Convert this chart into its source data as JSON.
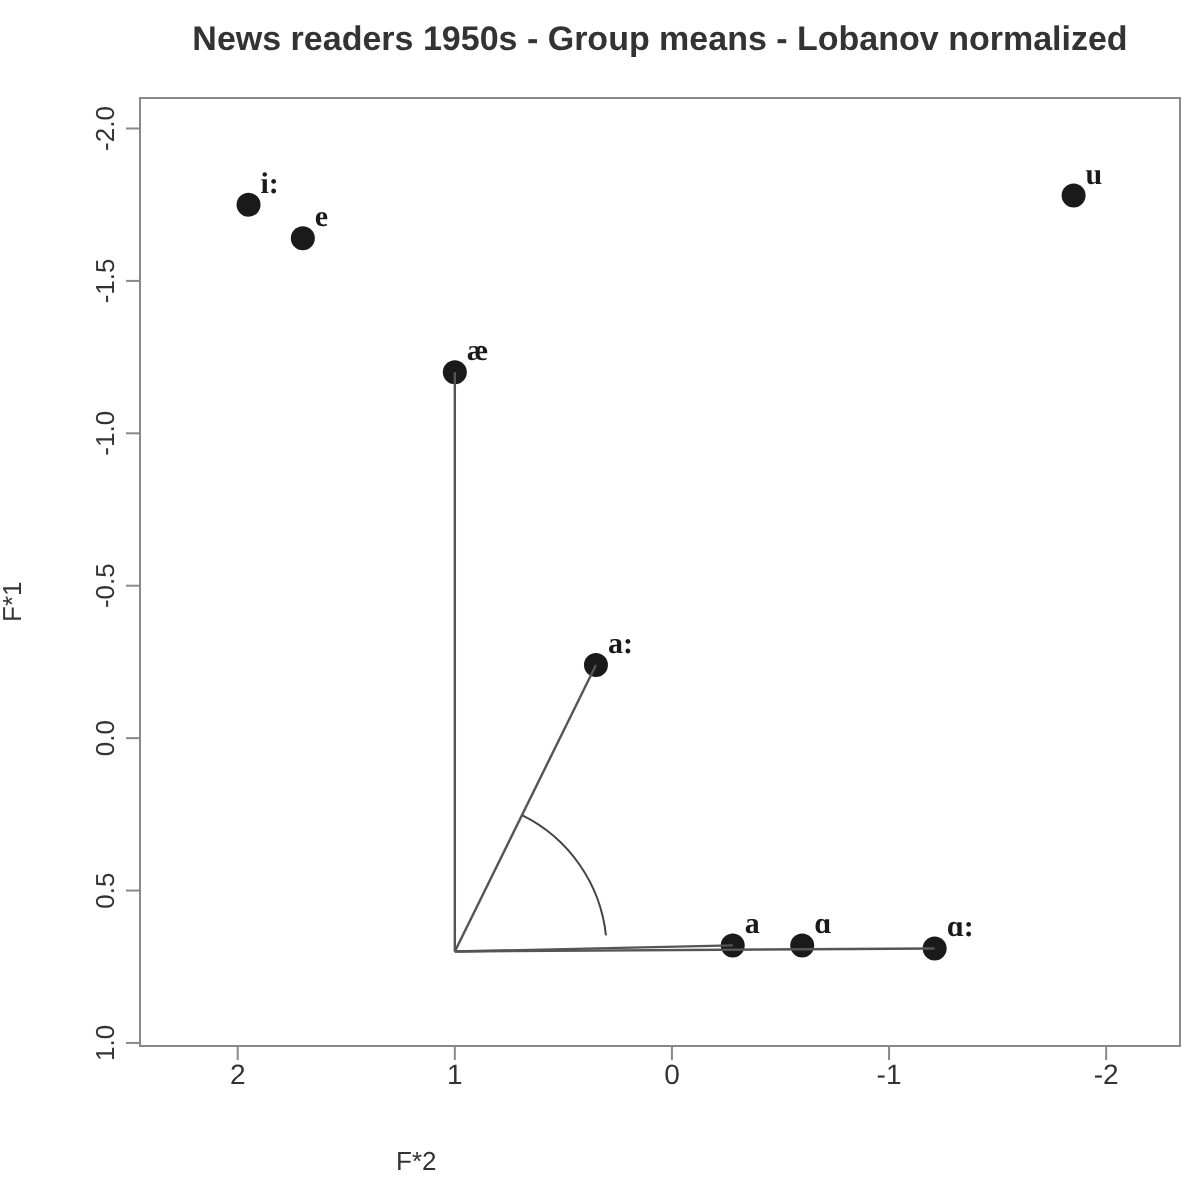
{
  "chart_data": {
    "type": "scatter",
    "title": "News readers 1950s - Group means - Lobanov normalized",
    "xlabel": "F*2",
    "ylabel": "F*1",
    "xlim": [
      2.45,
      -2.34
    ],
    "xticks": [
      2,
      1,
      0,
      -1,
      -2
    ],
    "ylim": [
      1.01,
      -2.1
    ],
    "yticks": [
      {
        "value": -2,
        "label": "-2.0"
      },
      {
        "value": -1.5,
        "label": "-1.5"
      },
      {
        "value": -1,
        "label": "-1.0"
      },
      {
        "value": -0.5,
        "label": "-0.5"
      },
      {
        "value": 0,
        "label": "0.0"
      },
      {
        "value": 0.5,
        "label": "0.5"
      },
      {
        "value": 1,
        "label": "1.0"
      }
    ],
    "grid": false,
    "legend": false,
    "marker": "circle",
    "series": [
      {
        "name": "i:",
        "color": "#1a1a1a",
        "x": [
          1.95
        ],
        "values": [
          -1.75
        ]
      },
      {
        "name": "e",
        "color": "#1a1a1a",
        "x": [
          1.7
        ],
        "values": [
          -1.64
        ]
      },
      {
        "name": "æ",
        "color": "#1a1a1a",
        "x": [
          1.0
        ],
        "values": [
          -1.2
        ]
      },
      {
        "name": "a:",
        "color": "#1a1a1a",
        "x": [
          0.35
        ],
        "values": [
          -0.24
        ]
      },
      {
        "name": "a",
        "color": "#1a1a1a",
        "x": [
          -0.28
        ],
        "values": [
          0.68
        ]
      },
      {
        "name": "ɑ",
        "color": "#1a1a1a",
        "x": [
          -0.6
        ],
        "values": [
          0.68
        ]
      },
      {
        "name": "ɑ:",
        "color": "#1a1a1a",
        "x": [
          -1.21
        ],
        "values": [
          0.69
        ]
      },
      {
        "name": "u",
        "color": "#1a1a1a",
        "x": [
          -1.85
        ],
        "values": [
          -1.78
        ]
      },
      {
        "type": "line",
        "color": "#555555",
        "marker": "none",
        "x": [
          1.0,
          1.0
        ],
        "values": [
          0.7,
          -1.2
        ]
      },
      {
        "type": "line",
        "color": "#555555",
        "marker": "none",
        "x": [
          1.0,
          0.35
        ],
        "values": [
          0.7,
          -0.24
        ]
      },
      {
        "type": "line",
        "color": "#555555",
        "marker": "none",
        "x": [
          1.0,
          -0.28
        ],
        "values": [
          0.7,
          0.68
        ]
      },
      {
        "type": "line",
        "color": "#555555",
        "marker": "none",
        "x": [
          1.0,
          -1.21
        ],
        "values": [
          0.7,
          0.69
        ]
      }
    ]
  }
}
